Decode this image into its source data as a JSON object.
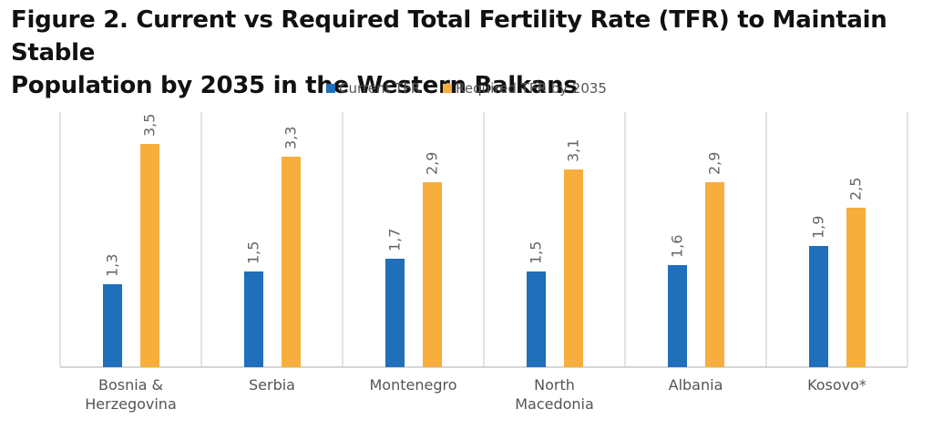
{
  "title_line1": "Figure 2. Current vs Required Total Fertility Rate (TFR) to Maintain Stable",
  "title_line2": "Population by 2035 in the Western Balkans",
  "chart_data": {
    "type": "bar",
    "title": "Figure 2. Current vs Required Total Fertility Rate (TFR) to Maintain Stable Population by 2035 in the Western Balkans",
    "categories": [
      [
        "Bosnia &",
        "Herzegovina"
      ],
      [
        "Serbia"
      ],
      [
        "Montenegro"
      ],
      [
        "North",
        "Macedonia"
      ],
      [
        "Albania"
      ],
      [
        "Kosovo*"
      ]
    ],
    "series": [
      {
        "name": "Current TFR",
        "color": "#1f6fba",
        "values": [
          1.3,
          1.5,
          1.7,
          1.5,
          1.6,
          1.9
        ],
        "labels": [
          "1,3",
          "1,5",
          "1,7",
          "1,5",
          "1,6",
          "1,9"
        ]
      },
      {
        "name": "Required TFR by 2035",
        "color": "#f7ae3d",
        "values": [
          3.5,
          3.3,
          2.9,
          3.1,
          2.9,
          2.5
        ],
        "labels": [
          "3,5",
          "3,3",
          "2,9",
          "3,1",
          "2,9",
          "2,5"
        ]
      }
    ],
    "xlabel": "",
    "ylabel": "",
    "ylim": [
      0,
      4
    ],
    "legend": "top-center",
    "grid": "vertical category separators",
    "data_labels": "rotated, above bars, comma decimal"
  }
}
